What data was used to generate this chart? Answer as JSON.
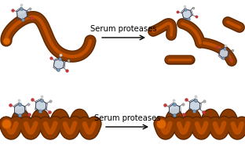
{
  "background_color": "#ffffff",
  "ribbon_color": "#8B3A00",
  "ribbon_highlight": "#CC5500",
  "ribbon_dark": "#5C2600",
  "text_serum": "Serum proteases",
  "text_fontsize": 7.2,
  "fig_width": 3.12,
  "fig_height": 1.89,
  "dpi": 100
}
